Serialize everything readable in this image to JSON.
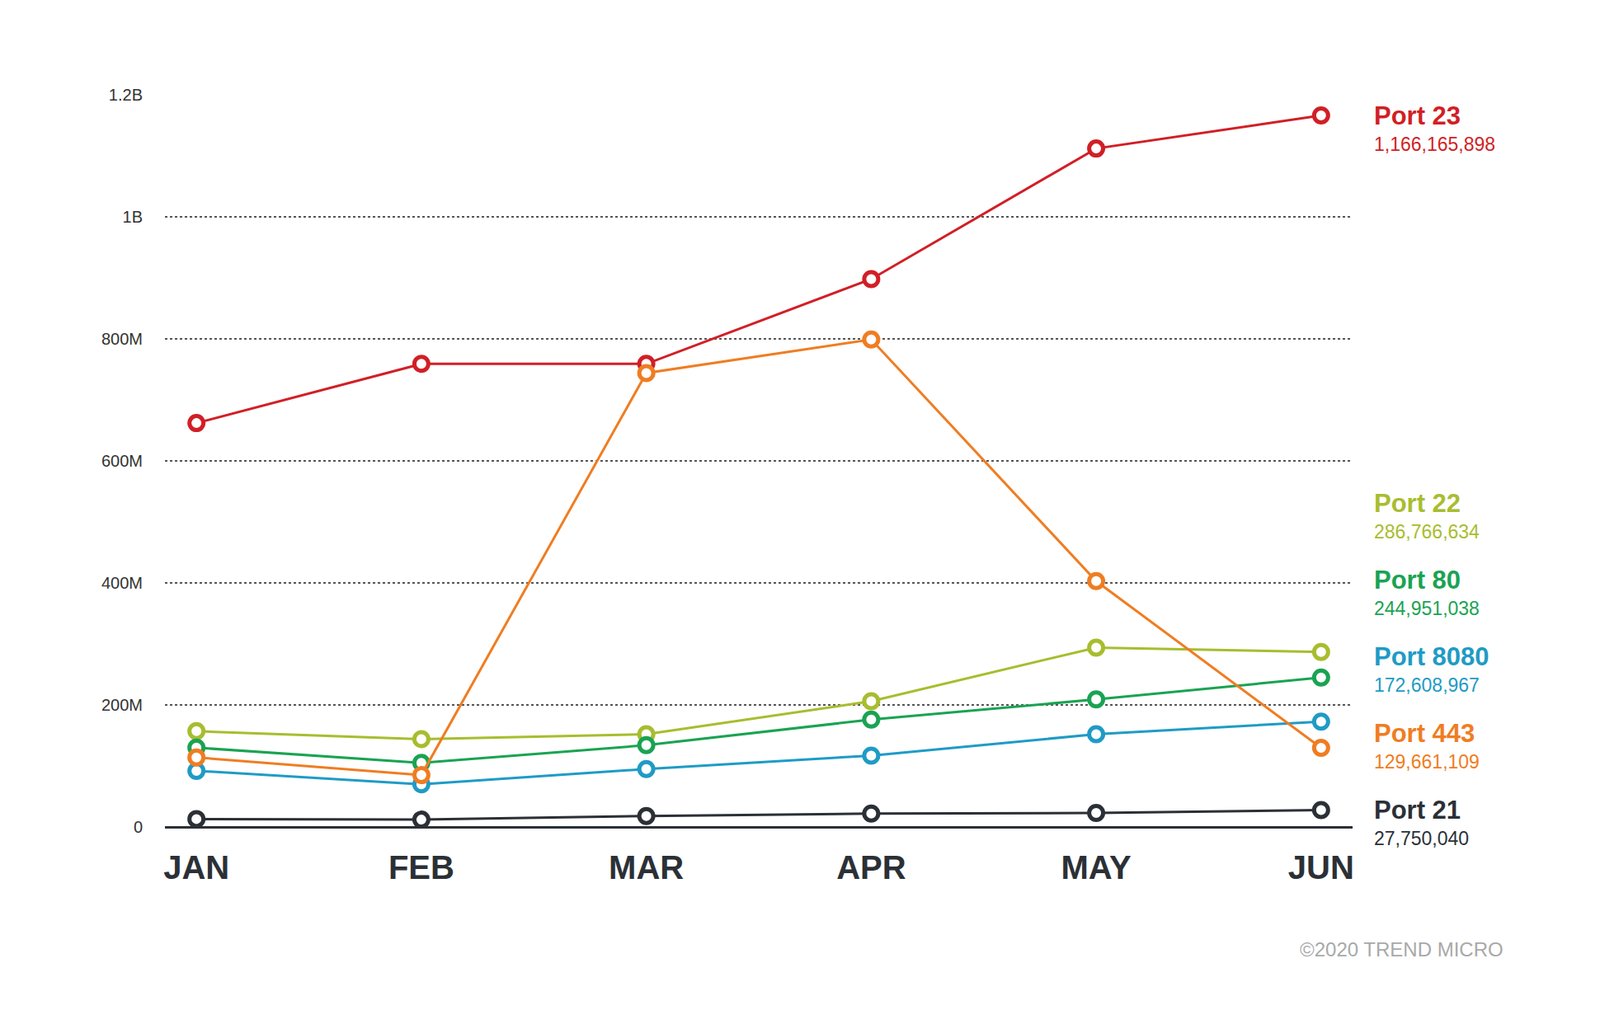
{
  "chart_data": {
    "type": "line",
    "categories": [
      "JAN",
      "FEB",
      "MAR",
      "APR",
      "MAY",
      "JUN"
    ],
    "series": [
      {
        "name": "Port 23",
        "color": "#d11f26",
        "values": [
          662000000,
          759000000,
          759000000,
          898000000,
          1112000000,
          1166165898
        ],
        "value_labels": [
          null,
          null,
          null,
          null,
          null,
          "1,166,165,898"
        ]
      },
      {
        "name": "Port 22",
        "color": "#a8bd2e",
        "values": [
          157000000,
          144000000,
          152000000,
          206000000,
          294000000,
          286766634
        ],
        "value_labels": [
          null,
          null,
          null,
          null,
          null,
          "286,766,634"
        ]
      },
      {
        "name": "Port 80",
        "color": "#1aa352",
        "values": [
          130000000,
          105000000,
          134000000,
          176000000,
          209000000,
          244951038
        ],
        "value_labels": [
          null,
          null,
          null,
          null,
          null,
          "244,951,038"
        ]
      },
      {
        "name": "Port 8080",
        "color": "#1f9bc5",
        "values": [
          92000000,
          70000000,
          95000000,
          117000000,
          152000000,
          172608967
        ],
        "value_labels": [
          null,
          null,
          null,
          null,
          null,
          "172,608,967"
        ]
      },
      {
        "name": "Port 443",
        "color": "#ef7d22",
        "values": [
          114000000,
          85000000,
          744000000,
          799000000,
          403000000,
          129661109
        ],
        "value_labels": [
          null,
          null,
          null,
          null,
          null,
          "129,661,109"
        ]
      },
      {
        "name": "Port 21",
        "color": "#2b3036",
        "values": [
          13000000,
          12000000,
          18000000,
          22000000,
          23000000,
          27750040
        ],
        "value_labels": [
          null,
          null,
          null,
          null,
          null,
          "27,750,040"
        ]
      }
    ],
    "ylim": [
      0,
      1200000000
    ],
    "yticks": [
      0,
      {
        "value": 200000000,
        "label": "200M"
      },
      {
        "value": 400000000,
        "label": "400M"
      },
      {
        "value": 600000000,
        "label": "600M"
      },
      {
        "value": 800000000,
        "label": "800M"
      },
      {
        "value": 1000000000,
        "label": "1B"
      },
      {
        "value": 1200000000,
        "label": "1.2B"
      }
    ],
    "grid": true,
    "marker": "open-circle",
    "annotations": [
      "©2020 TREND MICRO"
    ]
  }
}
